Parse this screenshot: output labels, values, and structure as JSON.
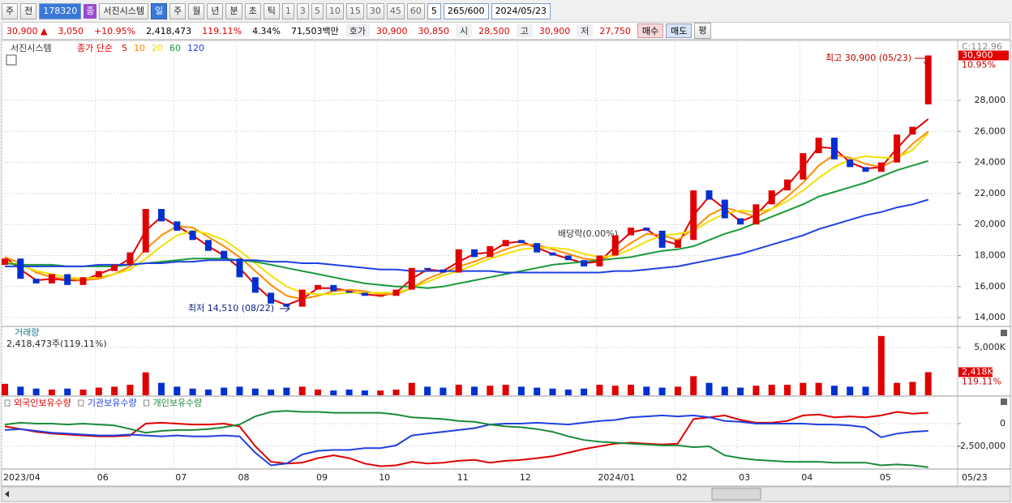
{
  "toolbar": {
    "items": [
      "주",
      "전",
      "178320",
      "종",
      "서진시스템",
      "일",
      "주",
      "월",
      "년",
      "분",
      "초",
      "틱",
      "1",
      "3",
      "5",
      "10",
      "15",
      "30",
      "45",
      "60",
      "5",
      "265/600",
      "2024/05/23"
    ]
  },
  "quote_bar": {
    "items": [
      "30,900 ▲",
      "3,050",
      "+10.95%",
      "2,418,473",
      "119.11%",
      "4.34%",
      "71,503백만",
      "호가",
      "30,900",
      "30,850",
      "시",
      "28,500",
      "고",
      "30,900",
      "저",
      "27,750",
      "매수",
      "매도",
      "평"
    ]
  },
  "chart_data": [
    {
      "type": "candlestick",
      "legend_title": "서진시스템",
      "legend_label": "종가 단순",
      "corner_label": "C:112.96",
      "categories": [
        "2023/04",
        null,
        null,
        null,
        null,
        null,
        "06",
        null,
        null,
        null,
        null,
        "07",
        null,
        null,
        null,
        "08",
        null,
        null,
        null,
        null,
        "09",
        null,
        null,
        null,
        "10",
        null,
        null,
        null,
        null,
        "11",
        null,
        null,
        null,
        "12",
        null,
        null,
        null,
        null,
        "2024/01",
        null,
        null,
        null,
        null,
        "02",
        null,
        null,
        null,
        "03",
        null,
        null,
        null,
        "04",
        null,
        null,
        null,
        null,
        "05",
        null,
        null,
        null
      ],
      "last_date": "05/23",
      "open": [
        17400,
        17800,
        16500,
        16200,
        16800,
        16100,
        16600,
        17000,
        17400,
        18200,
        21000,
        20200,
        19600,
        19000,
        18300,
        17800,
        16600,
        15600,
        14900,
        14700,
        15800,
        16100,
        15700,
        15600,
        15400,
        15400,
        15800,
        17200,
        17100,
        16900,
        18400,
        17900,
        18600,
        19000,
        18800,
        18200,
        18000,
        17700,
        17300,
        18000,
        19300,
        19800,
        19600,
        18500,
        19000,
        22200,
        21600,
        20400,
        20000,
        21300,
        22200,
        22900,
        24600,
        25600,
        24200,
        23700,
        23400,
        24000,
        25800,
        27750
      ],
      "close": [
        17800,
        16500,
        16200,
        16800,
        16100,
        16600,
        17000,
        17400,
        18200,
        21000,
        20200,
        19600,
        19000,
        18300,
        17800,
        16600,
        15600,
        14900,
        14700,
        15800,
        16100,
        15700,
        15600,
        15400,
        15400,
        15800,
        17200,
        17100,
        16900,
        18400,
        17900,
        18600,
        19000,
        18800,
        18200,
        18000,
        17700,
        17300,
        18000,
        19300,
        19800,
        19600,
        18500,
        19000,
        22200,
        21600,
        20400,
        20000,
        21300,
        22200,
        22900,
        24600,
        25600,
        24200,
        23700,
        23400,
        24000,
        25800,
        26300,
        30900
      ],
      "up_color": "#e00000",
      "down_color": "#0030d0",
      "series": [
        {
          "name": "5",
          "color": "#e00000",
          "values": [
            17900,
            17100,
            16400,
            16500,
            16400,
            16400,
            16800,
            17200,
            17800,
            19600,
            20500,
            19900,
            19300,
            18600,
            18000,
            17200,
            16100,
            15200,
            14800,
            15200,
            15900,
            15900,
            15700,
            15500,
            15400,
            15600,
            16500,
            17100,
            17000,
            17600,
            18100,
            18200,
            18800,
            18900,
            18500,
            18100,
            17800,
            17500,
            17600,
            18600,
            19500,
            19700,
            19000,
            18700,
            20600,
            21800,
            21000,
            20200,
            20600,
            21700,
            22500,
            23700,
            25000,
            24900,
            24000,
            23600,
            23700,
            24900,
            26000,
            26800
          ]
        },
        {
          "name": "10",
          "color": "#ff8c00",
          "values": [
            17900,
            17500,
            16900,
            16600,
            16500,
            16400,
            16500,
            16800,
            17300,
            18400,
            19300,
            19900,
            19800,
            19200,
            18600,
            17900,
            17000,
            16100,
            15400,
            15200,
            15400,
            15700,
            15800,
            15700,
            15500,
            15500,
            15900,
            16500,
            16900,
            17300,
            17600,
            18000,
            18400,
            18700,
            18700,
            18400,
            18100,
            17800,
            17700,
            18100,
            18800,
            19400,
            19300,
            19000,
            19700,
            20600,
            21100,
            20800,
            20500,
            21000,
            21800,
            22700,
            23800,
            24500,
            24300,
            23900,
            23700,
            24200,
            25200,
            26000
          ]
        },
        {
          "name": "20",
          "color": "#f0e000",
          "values": [
            17600,
            17400,
            17000,
            16800,
            16600,
            16500,
            16600,
            16800,
            17100,
            17800,
            18600,
            19300,
            19600,
            19400,
            19000,
            18300,
            17500,
            16700,
            16000,
            15600,
            15500,
            15500,
            15600,
            15600,
            15600,
            15600,
            15900,
            16300,
            16700,
            17000,
            17400,
            17800,
            18100,
            18400,
            18500,
            18500,
            18400,
            18100,
            17900,
            18000,
            18400,
            18900,
            19300,
            19400,
            19600,
            20200,
            20700,
            20900,
            20800,
            21000,
            21500,
            22200,
            23000,
            23700,
            24200,
            24400,
            24300,
            24300,
            24800,
            25900
          ]
        },
        {
          "name": "60",
          "color": "#1a9a3a",
          "values": [
            17500,
            17400,
            17400,
            17400,
            17300,
            17300,
            17300,
            17300,
            17400,
            17500,
            17600,
            17700,
            17800,
            17800,
            17800,
            17700,
            17600,
            17400,
            17200,
            17000,
            16800,
            16600,
            16400,
            16200,
            16100,
            16000,
            16000,
            15900,
            16000,
            16200,
            16400,
            16600,
            16800,
            17000,
            17200,
            17400,
            17500,
            17600,
            17700,
            17800,
            17900,
            18100,
            18300,
            18400,
            18600,
            19000,
            19400,
            19700,
            20100,
            20500,
            20900,
            21300,
            21800,
            22100,
            22400,
            22700,
            23100,
            23500,
            23800,
            24100
          ]
        },
        {
          "name": "120",
          "color": "#2040e0",
          "values": [
            17300,
            17300,
            17300,
            17300,
            17300,
            17300,
            17400,
            17400,
            17400,
            17500,
            17500,
            17600,
            17600,
            17700,
            17700,
            17700,
            17700,
            17600,
            17600,
            17500,
            17500,
            17400,
            17300,
            17200,
            17100,
            17100,
            17000,
            17000,
            17000,
            17000,
            17000,
            17000,
            16900,
            16900,
            16900,
            16900,
            16900,
            16900,
            16900,
            17000,
            17000,
            17100,
            17200,
            17300,
            17500,
            17700,
            17900,
            18100,
            18400,
            18700,
            19000,
            19300,
            19700,
            20000,
            20300,
            20600,
            20800,
            21100,
            21300,
            21600
          ]
        }
      ],
      "ylim": [
        13480,
        31760
      ],
      "yticks": [
        {
          "value": 14000,
          "label": "14,000"
        },
        {
          "value": 16000,
          "label": "16,000"
        },
        {
          "value": 18000,
          "label": "18,000"
        },
        {
          "value": 20000,
          "label": "20,000"
        },
        {
          "value": 22000,
          "label": "22,000"
        },
        {
          "value": 24000,
          "label": "24,000"
        },
        {
          "value": 26000,
          "label": "26,000"
        },
        {
          "value": 28000,
          "label": "28,000"
        }
      ],
      "grid": true,
      "annotations": {
        "high": "최고 30,900 (05/23)",
        "low": "최저 14,510 (08/22)",
        "dividend": "배당락(0.00%)"
      },
      "last_price_label": "30,900",
      "change_label": "10.95%"
    },
    {
      "type": "bar",
      "title": "거래량",
      "subtitle": "2,418,473주(119.11%)",
      "values": [
        1200,
        900,
        700,
        600,
        700,
        600,
        800,
        900,
        1100,
        2400,
        1300,
        900,
        700,
        600,
        800,
        900,
        700,
        600,
        800,
        900,
        600,
        500,
        600,
        500,
        500,
        600,
        1300,
        900,
        800,
        1100,
        900,
        1000,
        1100,
        900,
        800,
        700,
        600,
        700,
        1100,
        1000,
        1100,
        900,
        800,
        900,
        2000,
        1300,
        900,
        800,
        1000,
        1100,
        1100,
        1300,
        1300,
        1000,
        900,
        900,
        6200,
        1300,
        1400,
        2418
      ],
      "ylim": [
        0,
        7034
      ],
      "yticks": [
        {
          "value": 5000,
          "label": "5,000K"
        }
      ],
      "last_label": "2,418K",
      "ratio_label": "119.11%"
    },
    {
      "type": "line",
      "series": [
        {
          "name": "외국인보유수량",
          "color": "#e00000",
          "values": [
            -300000,
            -600000,
            -900000,
            -1100000,
            -1200000,
            -1300000,
            -1400000,
            -1400000,
            -1300000,
            0,
            100000,
            0,
            -100000,
            -100000,
            0,
            -300000,
            -2500000,
            -4200000,
            -4400000,
            -4300000,
            -3800000,
            -3500000,
            -3800000,
            -4400000,
            -4700000,
            -4600000,
            -4200000,
            -4400000,
            -4300000,
            -4100000,
            -4000000,
            -4300000,
            -4100000,
            -4000000,
            -3800000,
            -3600000,
            -3200000,
            -2800000,
            -2500000,
            -2200000,
            -2100000,
            -2200000,
            -2300000,
            -2200000,
            500000,
            700000,
            900000,
            400000,
            100000,
            100000,
            300000,
            900000,
            1000000,
            700000,
            800000,
            700000,
            900000,
            1300000,
            1100000,
            1200000
          ]
        },
        {
          "name": "기관보유수량",
          "color": "#2040e0",
          "values": [
            -700000,
            -600000,
            -800000,
            -1000000,
            -1100000,
            -1200000,
            -1300000,
            -1300000,
            -1200000,
            -1300000,
            -1400000,
            -1300000,
            -1400000,
            -1400000,
            -1300000,
            -1400000,
            -3200000,
            -4600000,
            -4400000,
            -3400000,
            -3000000,
            -2900000,
            -2900000,
            -2700000,
            -2700000,
            -2400000,
            -1300000,
            -1100000,
            -900000,
            -700000,
            -500000,
            -100000,
            0,
            0,
            100000,
            0,
            -100000,
            100000,
            300000,
            400000,
            700000,
            800000,
            900000,
            800000,
            900000,
            700000,
            300000,
            200000,
            0,
            0,
            0,
            0,
            -100000,
            -100000,
            -200000,
            -400000,
            -1500000,
            -1100000,
            -900000,
            -800000
          ]
        },
        {
          "name": "개인보유수량",
          "color": "#1a8a3a",
          "values": [
            -100000,
            100000,
            0,
            0,
            -100000,
            0,
            -100000,
            -200000,
            -600000,
            -1000000,
            -800000,
            -700000,
            -700000,
            -600000,
            -400000,
            -100000,
            800000,
            1300000,
            1400000,
            1300000,
            1300000,
            1200000,
            1200000,
            1200000,
            1200000,
            1000000,
            700000,
            600000,
            500000,
            300000,
            200000,
            -100000,
            -300000,
            -400000,
            -600000,
            -900000,
            -1400000,
            -1800000,
            -2000000,
            -2100000,
            -2200000,
            -2300000,
            -2400000,
            -2400000,
            -2600000,
            -2500000,
            -3500000,
            -3800000,
            -4000000,
            -4100000,
            -4200000,
            -4200000,
            -4200000,
            -4300000,
            -4300000,
            -4300000,
            -4600000,
            -4500000,
            -4600000,
            -4800000
          ]
        }
      ],
      "ylim": [
        -4910000,
        2860000
      ],
      "yticks": [
        0,
        {
          "value": -2500000,
          "label": "-2,500,000"
        }
      ]
    }
  ]
}
